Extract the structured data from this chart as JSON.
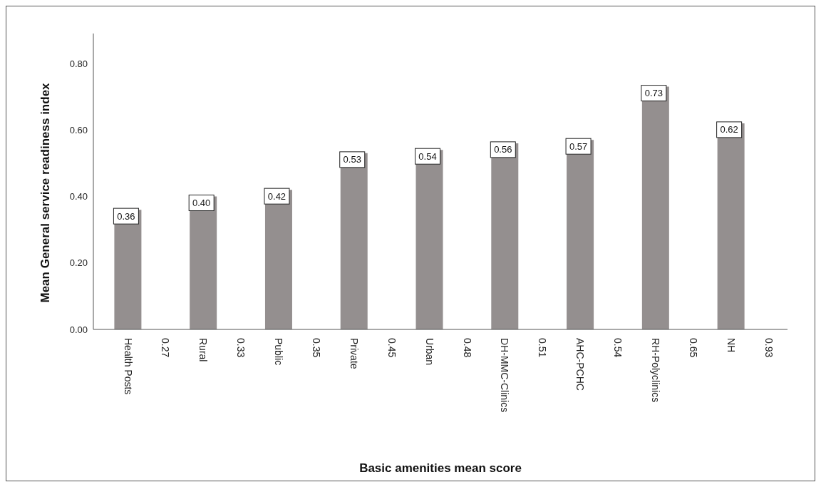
{
  "chart_data": {
    "type": "bar",
    "xlabel": "Basic amenities mean score",
    "ylabel": "Mean General service readiness index",
    "categories": [
      "Health Posts",
      "0.27",
      "Rural",
      "0.33",
      "Public",
      "0.35",
      "Private",
      "0.45",
      "Urban",
      "0.48",
      "DH-MMC-Clinics",
      "0.51",
      "AHC-PCHC",
      "0.54",
      "RH-Polyclinics",
      "0.65",
      "NH",
      "0.93"
    ],
    "values": [
      0.36,
      null,
      0.4,
      null,
      0.42,
      null,
      0.53,
      null,
      0.54,
      null,
      0.56,
      null,
      0.57,
      null,
      0.73,
      null,
      0.62,
      null
    ],
    "color": "#948f8f",
    "ylim": [
      0,
      0.89
    ],
    "yticks": [
      {
        "value": 0,
        "label": "0.00"
      },
      {
        "value": 0.2,
        "label": "0.20"
      },
      {
        "value": 0.4,
        "label": "0.40"
      },
      {
        "value": 0.6,
        "label": "0.60"
      },
      {
        "value": 0.8,
        "label": "0.80"
      }
    ],
    "value_labels": [
      "0.36",
      null,
      "0.40",
      null,
      "0.42",
      null,
      "0.53",
      null,
      "0.54",
      null,
      "0.56",
      null,
      "0.57",
      null,
      "0.73",
      null,
      "0.62",
      null
    ],
    "grid": false,
    "legend": false
  }
}
